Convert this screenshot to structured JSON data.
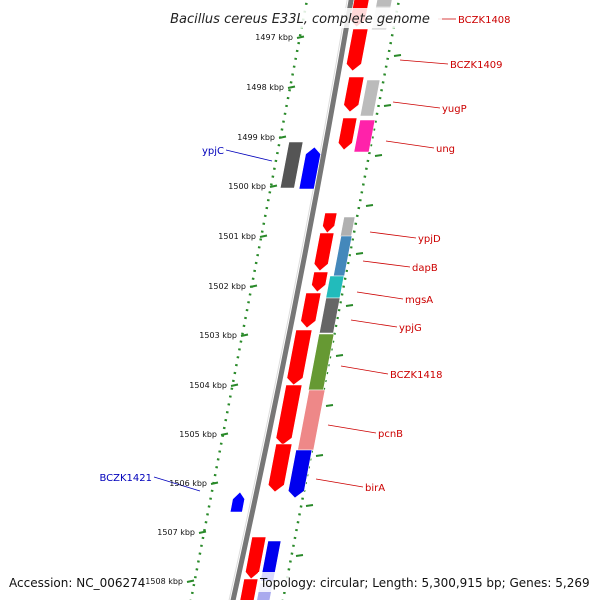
{
  "title": "Bacillus cereus E33L, complete genome",
  "footer": {
    "accession": "Accession: NC_006274",
    "topology": "Topology: circular; Length: 5,300,915 bp; Genes: 5,269"
  },
  "colors": {
    "forward_label": "#cc0000",
    "reverse_label": "#0000bb",
    "tick": "#2a8a2a",
    "backbone": "#777777"
  },
  "kbp_labels": [
    "1497 kbp",
    "1498 kbp",
    "1499 kbp",
    "1500 kbp",
    "1501 kbp",
    "1502 kbp",
    "1503 kbp",
    "1504 kbp",
    "1505 kbp",
    "1506 kbp",
    "1507 kbp",
    "1508 kbp"
  ],
  "forward_gene_labels": [
    "BCZK1408",
    "BCZK1409",
    "yugP",
    "ung",
    "ypjD",
    "dapB",
    "mgsA",
    "ypjG",
    "BCZK1418",
    "pcnB",
    "birA"
  ],
  "reverse_gene_labels": [
    "ypjC",
    "BCZK1421"
  ]
}
